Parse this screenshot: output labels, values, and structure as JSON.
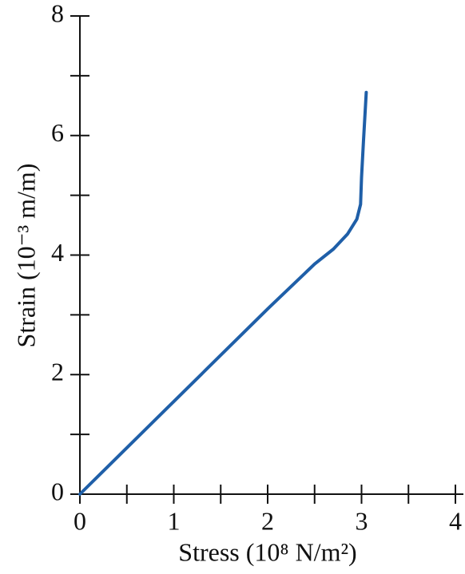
{
  "chart_data": {
    "type": "line",
    "x_label": "Stress (10⁸ N/m²)",
    "y_label": "Strain (10⁻³ m/m)",
    "x": [
      0,
      1,
      2,
      2.5,
      2.7,
      2.85,
      2.95,
      2.99,
      3.0,
      3.02,
      3.05
    ],
    "values": [
      0,
      1.55,
      3.1,
      3.85,
      4.1,
      4.35,
      4.6,
      4.85,
      5.3,
      5.9,
      6.72
    ],
    "color": "#1f5fa8",
    "xlim": [
      0,
      4
    ],
    "xticks": [
      0,
      1,
      2,
      3,
      4
    ],
    "xminorticks": [
      0.5,
      1.5,
      2.5,
      3.5
    ],
    "ylim": [
      0,
      8
    ],
    "yticks": [
      0,
      2,
      4,
      6,
      8
    ],
    "yminorticks": [
      1,
      3,
      5,
      7
    ]
  }
}
